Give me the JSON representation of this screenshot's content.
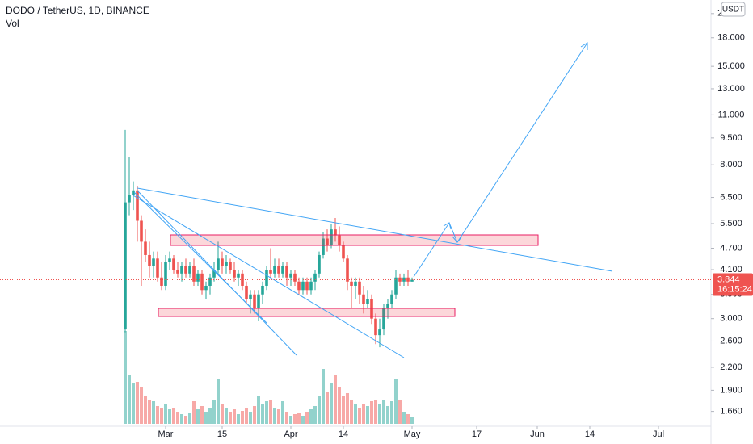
{
  "chart_data": {
    "type": "candlestick",
    "title": "DODO / TetherUS, 1D, BINANCE",
    "volume_label": "Vol",
    "currency": "USDT",
    "countdown": "16:15:24",
    "last_price": 3.844,
    "log_scale": true,
    "up_color": "#26a69a",
    "down_color": "#ef5350",
    "x": [
      "Feb 19",
      "Feb 20",
      "Feb 21",
      "Feb 22",
      "Feb 23",
      "Feb 24",
      "Feb 25",
      "Feb 26",
      "Feb 27",
      "Feb 28",
      "Mar 1",
      "Mar 2",
      "Mar 3",
      "Mar 4",
      "Mar 5",
      "Mar 6",
      "Mar 7",
      "Mar 8",
      "Mar 9",
      "Mar 10",
      "Mar 11",
      "Mar 12",
      "Mar 13",
      "Mar 14",
      "Mar 15",
      "Mar 16",
      "Mar 17",
      "Mar 18",
      "Mar 19",
      "Mar 20",
      "Mar 21",
      "Mar 22",
      "Mar 23",
      "Mar 24",
      "Mar 25",
      "Mar 26",
      "Mar 27",
      "Mar 28",
      "Mar 29",
      "Mar 30",
      "Mar 31",
      "Apr 1",
      "Apr 2",
      "Apr 3",
      "Apr 4",
      "Apr 5",
      "Apr 6",
      "Apr 7",
      "Apr 8",
      "Apr 9",
      "Apr 10",
      "Apr 11",
      "Apr 12",
      "Apr 13",
      "Apr 14",
      "Apr 15",
      "Apr 16",
      "Apr 17",
      "Apr 18",
      "Apr 19",
      "Apr 20",
      "Apr 21",
      "Apr 22",
      "Apr 23",
      "Apr 24",
      "Apr 25",
      "Apr 26",
      "Apr 27",
      "Apr 28",
      "Apr 29",
      "Apr 30",
      "May 1"
    ],
    "open": [
      2.8,
      6.3,
      6.6,
      6.8,
      5.6,
      4.9,
      4.5,
      4.2,
      4.4,
      3.9,
      3.7,
      4.3,
      4.4,
      4.1,
      4.0,
      4.2,
      4.0,
      4.2,
      3.8,
      4.0,
      3.6,
      3.7,
      3.9,
      4.1,
      4.4,
      4.2,
      4.3,
      4.1,
      3.9,
      4.0,
      3.7,
      3.4,
      3.5,
      3.2,
      3.5,
      3.7,
      4.1,
      4.0,
      4.2,
      4.0,
      4.2,
      3.9,
      4.0,
      3.8,
      3.6,
      3.8,
      3.6,
      3.8,
      4.0,
      4.5,
      5.0,
      4.8,
      5.3,
      5.1,
      4.8,
      4.4,
      3.8,
      3.7,
      3.8,
      3.5,
      3.3,
      3.4,
      3.0,
      2.7,
      2.8,
      3.2,
      3.3,
      3.5,
      3.9,
      3.8,
      3.9,
      3.8
    ],
    "high": [
      10,
      8.4,
      7.2,
      7.0,
      5.8,
      5.3,
      4.9,
      4.6,
      4.6,
      4.3,
      4.5,
      4.6,
      4.5,
      4.3,
      4.3,
      4.4,
      4.3,
      4.4,
      4.1,
      4.1,
      3.8,
      4.0,
      4.3,
      4.9,
      4.6,
      4.5,
      4.4,
      4.3,
      4.1,
      4.1,
      3.8,
      3.6,
      3.6,
      3.6,
      3.8,
      4.2,
      4.7,
      4.4,
      4.4,
      4.3,
      4.3,
      4.1,
      4.1,
      3.9,
      3.9,
      3.9,
      3.9,
      4.1,
      4.6,
      5.2,
      5.3,
      5.5,
      5.7,
      5.4,
      4.9,
      4.5,
      3.9,
      3.9,
      3.9,
      3.7,
      3.6,
      3.5,
      3.1,
      3.0,
      3.3,
      3.4,
      3.6,
      4.1,
      4.0,
      4.0,
      4.1,
      3.9
    ],
    "low": [
      2.75,
      5.8,
      6.0,
      4.9,
      3.7,
      4.3,
      3.9,
      3.9,
      3.8,
      3.6,
      3.6,
      4.1,
      4.0,
      3.9,
      3.8,
      3.9,
      3.9,
      3.7,
      3.7,
      3.5,
      3.4,
      3.5,
      3.8,
      4.0,
      4.0,
      4.0,
      4.0,
      3.8,
      3.7,
      3.6,
      3.3,
      3.1,
      3.1,
      2.95,
      3.3,
      3.6,
      3.9,
      3.9,
      3.9,
      3.9,
      3.7,
      3.7,
      3.7,
      3.5,
      3.5,
      3.5,
      3.5,
      3.6,
      3.9,
      4.4,
      4.6,
      4.7,
      4.9,
      4.6,
      4.3,
      3.6,
      3.2,
      3.4,
      3.3,
      3.1,
      3.2,
      2.9,
      2.55,
      2.5,
      2.7,
      3.0,
      3.2,
      3.4,
      3.7,
      3.7,
      3.7,
      3.8
    ],
    "close": [
      6.3,
      6.6,
      6.8,
      5.6,
      4.9,
      4.5,
      4.2,
      4.4,
      3.9,
      3.7,
      4.3,
      4.4,
      4.1,
      4.0,
      4.2,
      4.0,
      4.2,
      3.8,
      4.0,
      3.6,
      3.7,
      3.9,
      4.1,
      4.4,
      4.2,
      4.3,
      4.1,
      3.9,
      4.0,
      3.7,
      3.4,
      3.5,
      3.2,
      3.5,
      3.7,
      4.1,
      4.0,
      4.2,
      4.0,
      4.2,
      3.9,
      4.0,
      3.8,
      3.6,
      3.8,
      3.6,
      3.8,
      4.0,
      4.5,
      5.0,
      4.8,
      5.3,
      5.1,
      4.8,
      4.4,
      3.8,
      3.7,
      3.8,
      3.5,
      3.3,
      3.4,
      3.0,
      2.7,
      2.8,
      3.2,
      3.3,
      3.5,
      3.9,
      3.8,
      3.9,
      3.8,
      3.844
    ],
    "volume": [
      115,
      60,
      50,
      52,
      45,
      35,
      30,
      28,
      22,
      20,
      25,
      18,
      20,
      15,
      12,
      10,
      14,
      28,
      18,
      22,
      15,
      20,
      30,
      55,
      25,
      20,
      15,
      18,
      12,
      16,
      20,
      15,
      22,
      35,
      25,
      28,
      30,
      20,
      18,
      28,
      15,
      10,
      12,
      14,
      10,
      15,
      18,
      22,
      35,
      68,
      40,
      50,
      60,
      45,
      35,
      38,
      30,
      25,
      20,
      25,
      22,
      28,
      30,
      25,
      30,
      22,
      28,
      55,
      30,
      15,
      12,
      8
    ],
    "xlim": [
      "Jan 19",
      "Jul 14"
    ],
    "xticks": [
      {
        "value": "Mar 1",
        "label": "Mar"
      },
      {
        "value": "Mar 15",
        "label": "15"
      },
      {
        "value": "Apr 1",
        "label": "Apr"
      },
      {
        "value": "Apr 14",
        "label": "14"
      },
      {
        "value": "May 1",
        "label": "May"
      },
      {
        "value": "May 17",
        "label": "17"
      },
      {
        "value": "Jun 1",
        "label": "Jun"
      },
      {
        "value": "Jun 14",
        "label": "14"
      },
      {
        "value": "Jul 1",
        "label": "Jul"
      }
    ],
    "ylim": [
      1.51,
      22.9
    ],
    "yticks": [
      {
        "value": 1.66,
        "label": "1.660"
      },
      {
        "value": 1.9,
        "label": "1.900"
      },
      {
        "value": 2.2,
        "label": "2.200"
      },
      {
        "value": 2.6,
        "label": "2.600"
      },
      {
        "value": 3,
        "label": "3.000"
      },
      {
        "value": 3.5,
        "label": "3.500"
      },
      {
        "value": 4.1,
        "label": "4.100"
      },
      {
        "value": 4.7,
        "label": "4.700"
      },
      {
        "value": 5.5,
        "label": "5.500"
      },
      {
        "value": 6.5,
        "label": "6.500"
      },
      {
        "value": 8,
        "label": "8.000"
      },
      {
        "value": 9.5,
        "label": "9.500"
      },
      {
        "value": 11,
        "label": "11.000"
      },
      {
        "value": 13,
        "label": "13.000"
      },
      {
        "value": 15,
        "label": "15.000"
      },
      {
        "value": 18,
        "label": "18.000"
      },
      {
        "value": 21,
        "label": "21.000"
      }
    ]
  }
}
